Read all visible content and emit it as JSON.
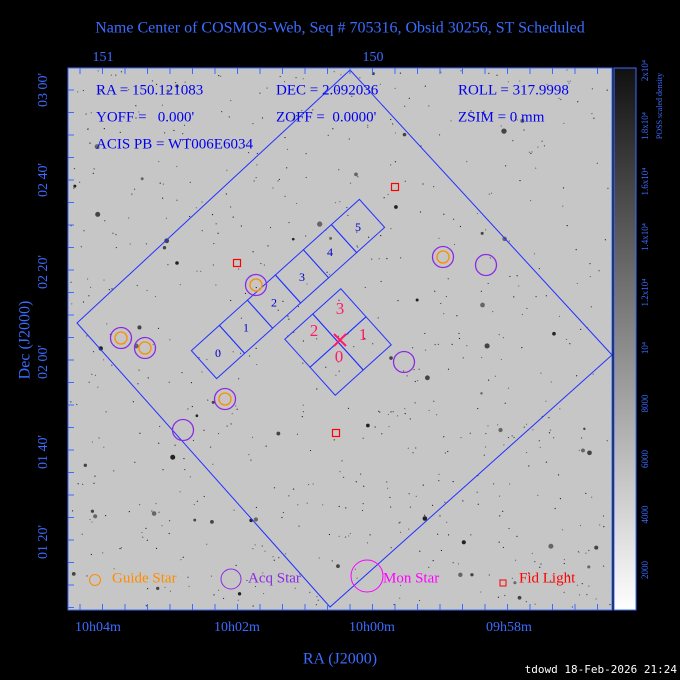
{
  "header": {
    "title": "Name Center of COSMOS-Web, Seq # 705316, Obsid 30256, ST Scheduled"
  },
  "info": {
    "ra": "RA = 150.121083",
    "dec": "DEC = 2.092036",
    "roll": "ROLL = 317.9998",
    "yoff": "YOFF =   0.000'",
    "zoff": "ZOFF =  0.0000'",
    "zsim": "ZSIM = 0 mm",
    "acis": "ACIS PB = WT006E6034"
  },
  "axes": {
    "top_ticks": [
      "151",
      "150"
    ],
    "bottom_ticks": [
      "10h04m",
      "10h02m",
      "10h00m",
      "09h58m"
    ],
    "left_ticks": [
      "03 00'",
      "02 40'",
      "02 20'",
      "02 00'",
      "01 40'",
      "01 20'"
    ],
    "x_label": "RA (J2000)",
    "y_label": "Dec (J2000)"
  },
  "colorbar": {
    "ticks": [
      "2000",
      "4000",
      "6000",
      "8000",
      "10⁴",
      "1.2x10⁴",
      "1.4x10⁴",
      "1.6x10⁴",
      "1.8x10⁴",
      "2x10⁴"
    ],
    "label": "POSS scaled density"
  },
  "chips": {
    "acis_s": [
      "0",
      "1",
      "2",
      "3",
      "4",
      "5"
    ],
    "acis_i": [
      "0",
      "1",
      "2",
      "3"
    ]
  },
  "legend": [
    "Guide Star",
    "Acq Star",
    "Mon Star",
    "Fid Light"
  ],
  "footer": "tdowd 18-Feb-2026 21:24"
}
